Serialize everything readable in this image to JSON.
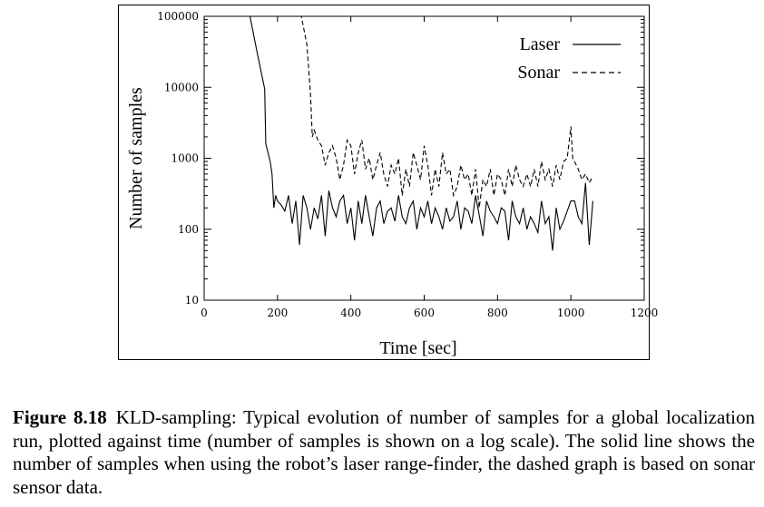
{
  "chart_data": {
    "type": "line",
    "xlabel": "Time [sec]",
    "ylabel": "Number of samples",
    "xlim": [
      0,
      1200
    ],
    "ylim": [
      10,
      100000
    ],
    "yscale": "log",
    "x_ticks": [
      "0",
      "200",
      "400",
      "600",
      "800",
      "1000",
      "1200"
    ],
    "y_ticks": [
      "10",
      "100",
      "1000",
      "10000",
      "100000"
    ],
    "legend_position": "top-right",
    "series": [
      {
        "name": "Laser",
        "style": "solid",
        "x": [
          0,
          125,
          145,
          165,
          168,
          180,
          185,
          190,
          195,
          200,
          210,
          220,
          230,
          240,
          250,
          260,
          270,
          280,
          290,
          300,
          310,
          320,
          330,
          340,
          350,
          360,
          370,
          380,
          390,
          400,
          410,
          420,
          430,
          440,
          450,
          460,
          470,
          480,
          490,
          500,
          510,
          520,
          530,
          540,
          550,
          560,
          570,
          580,
          590,
          600,
          610,
          620,
          630,
          640,
          650,
          660,
          670,
          680,
          690,
          700,
          710,
          720,
          730,
          740,
          750,
          760,
          770,
          780,
          790,
          800,
          810,
          820,
          830,
          840,
          850,
          860,
          870,
          880,
          890,
          900,
          910,
          920,
          930,
          940,
          950,
          960,
          970,
          980,
          1000,
          1010,
          1020,
          1030,
          1040,
          1050,
          1060
        ],
        "y": [
          100000,
          100000,
          30000,
          9500,
          1600,
          900,
          600,
          200,
          300,
          250,
          220,
          180,
          300,
          120,
          250,
          60,
          300,
          200,
          100,
          200,
          140,
          300,
          80,
          350,
          200,
          150,
          250,
          300,
          120,
          200,
          70,
          250,
          120,
          300,
          150,
          80,
          200,
          250,
          120,
          180,
          200,
          130,
          300,
          150,
          120,
          200,
          250,
          100,
          200,
          150,
          250,
          120,
          200,
          150,
          100,
          200,
          130,
          150,
          250,
          100,
          200,
          180,
          120,
          300,
          160,
          80,
          250,
          180,
          150,
          120,
          200,
          180,
          70,
          250,
          150,
          120,
          200,
          100,
          150,
          120,
          90,
          250,
          120,
          150,
          50,
          200,
          100,
          130,
          250,
          250,
          150,
          120,
          450,
          60,
          250
        ]
      },
      {
        "name": "Sonar",
        "style": "dashed",
        "x": [
          0,
          265,
          280,
          290,
          295,
          300,
          310,
          320,
          330,
          340,
          350,
          360,
          370,
          380,
          390,
          400,
          410,
          420,
          430,
          440,
          450,
          460,
          470,
          480,
          490,
          500,
          510,
          520,
          530,
          540,
          550,
          560,
          570,
          580,
          590,
          600,
          610,
          620,
          630,
          640,
          650,
          660,
          670,
          680,
          690,
          700,
          710,
          720,
          730,
          740,
          750,
          760,
          770,
          780,
          790,
          800,
          810,
          820,
          830,
          840,
          850,
          860,
          870,
          880,
          890,
          900,
          910,
          920,
          930,
          940,
          950,
          960,
          970,
          980,
          990,
          1000,
          1005,
          1010,
          1020,
          1030,
          1040,
          1050,
          1060
        ],
        "y": [
          100000,
          100000,
          40000,
          8000,
          2000,
          2500,
          1800,
          1500,
          800,
          1200,
          1500,
          1000,
          500,
          800,
          1800,
          1500,
          600,
          1200,
          1800,
          700,
          1000,
          500,
          800,
          1200,
          600,
          400,
          800,
          600,
          1000,
          300,
          700,
          400,
          1200,
          800,
          500,
          1500,
          800,
          300,
          700,
          400,
          1200,
          600,
          700,
          300,
          400,
          800,
          500,
          600,
          300,
          700,
          200,
          500,
          400,
          700,
          300,
          600,
          500,
          300,
          700,
          400,
          800,
          500,
          400,
          600,
          400,
          700,
          400,
          900,
          500,
          700,
          400,
          800,
          500,
          900,
          1000,
          2800,
          1000,
          900,
          700,
          500,
          600,
          450,
          550
        ]
      }
    ]
  },
  "caption": {
    "label": "Figure 8.18",
    "text": "KLD-sampling: Typical evolution of number of samples for a global localization run, plotted against time (number of samples is shown on a log scale). The solid line shows the number of samples when using the robot’s laser range-finder, the dashed graph is based on sonar sensor data."
  }
}
